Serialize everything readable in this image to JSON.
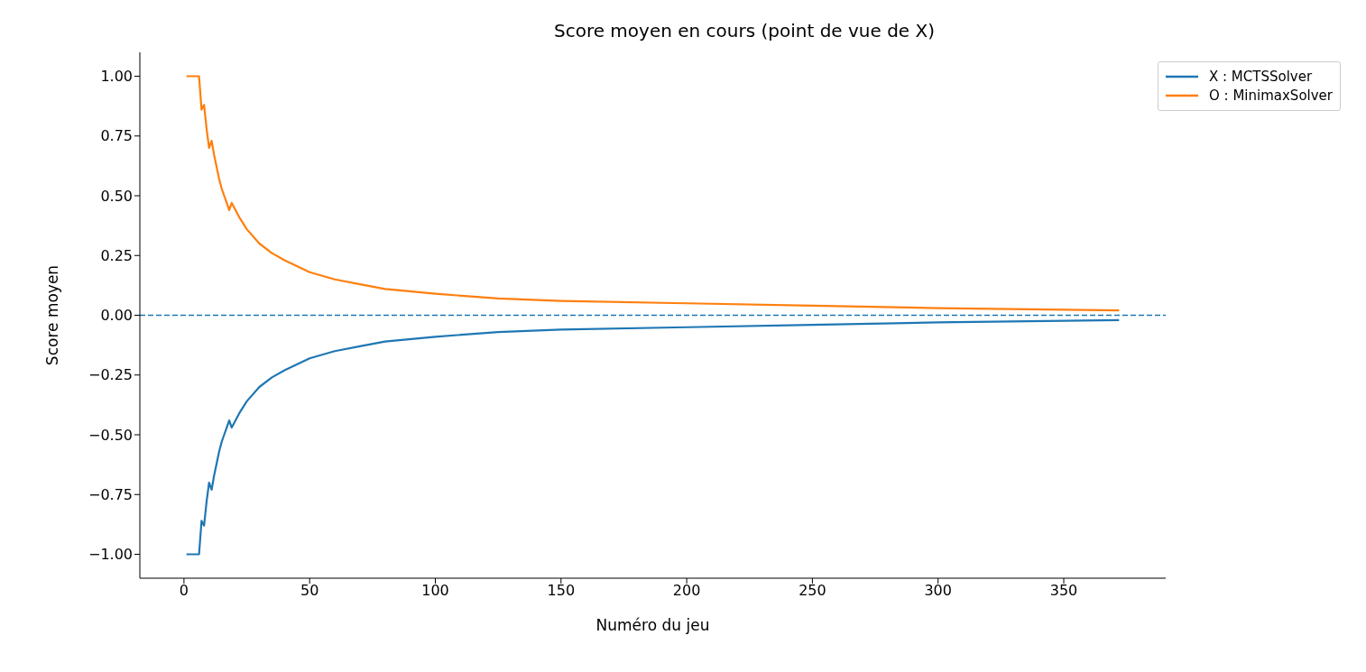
{
  "chart_data": {
    "type": "line",
    "title": "Score moyen en cours (point de vue de X)",
    "xlabel": "Numéro du jeu",
    "ylabel": "Score moyen",
    "x": [
      1,
      2,
      3,
      4,
      5,
      6,
      7,
      8,
      9,
      10,
      11,
      12,
      13,
      14,
      15,
      16,
      17,
      18,
      19,
      20,
      22,
      25,
      30,
      35,
      40,
      50,
      60,
      70,
      80,
      100,
      125,
      150,
      200,
      250,
      300,
      372
    ],
    "series": [
      {
        "name": "X : MCTSSolver",
        "color": "#1f77b4",
        "values": [
          -1,
          -1,
          -1,
          -1,
          -1,
          -1,
          -0.86,
          -0.88,
          -0.78,
          -0.7,
          -0.73,
          -0.67,
          -0.62,
          -0.57,
          -0.53,
          -0.5,
          -0.47,
          -0.44,
          -0.47,
          -0.45,
          -0.41,
          -0.36,
          -0.3,
          -0.26,
          -0.23,
          -0.18,
          -0.15,
          -0.13,
          -0.11,
          -0.09,
          -0.07,
          -0.06,
          -0.05,
          -0.04,
          -0.03,
          -0.02
        ]
      },
      {
        "name": "O : MinimaxSolver",
        "color": "#ff7f0e",
        "values": [
          1,
          1,
          1,
          1,
          1,
          1,
          0.86,
          0.88,
          0.78,
          0.7,
          0.73,
          0.67,
          0.62,
          0.57,
          0.53,
          0.5,
          0.47,
          0.44,
          0.47,
          0.45,
          0.41,
          0.36,
          0.3,
          0.26,
          0.23,
          0.18,
          0.15,
          0.13,
          0.11,
          0.09,
          0.07,
          0.06,
          0.05,
          0.04,
          0.03,
          0.02
        ]
      }
    ],
    "xlim": [
      -17.55,
      390.55
    ],
    "xticks": [
      0,
      50,
      100,
      150,
      200,
      250,
      300,
      350
    ],
    "ylim": [
      -1.1,
      1.1
    ],
    "yticks": [
      {
        "value": -1,
        "label": "−1.00"
      },
      {
        "value": -0.75,
        "label": "−0.75"
      },
      {
        "value": -0.5,
        "label": "−0.50"
      },
      {
        "value": -0.25,
        "label": "−0.25"
      },
      {
        "value": 0,
        "label": "0.00"
      },
      {
        "value": 0.25,
        "label": "0.25"
      },
      {
        "value": 0.5,
        "label": "0.50"
      },
      {
        "value": 0.75,
        "label": "0.75"
      },
      {
        "value": 1,
        "label": "1.00"
      }
    ],
    "ref_lines": [
      {
        "axis": "y",
        "value": 0,
        "color": "#1f77b4",
        "line_style": "dashed"
      }
    ],
    "legend": "top right",
    "grid": false,
    "marker": "none",
    "line_style": "solid"
  }
}
